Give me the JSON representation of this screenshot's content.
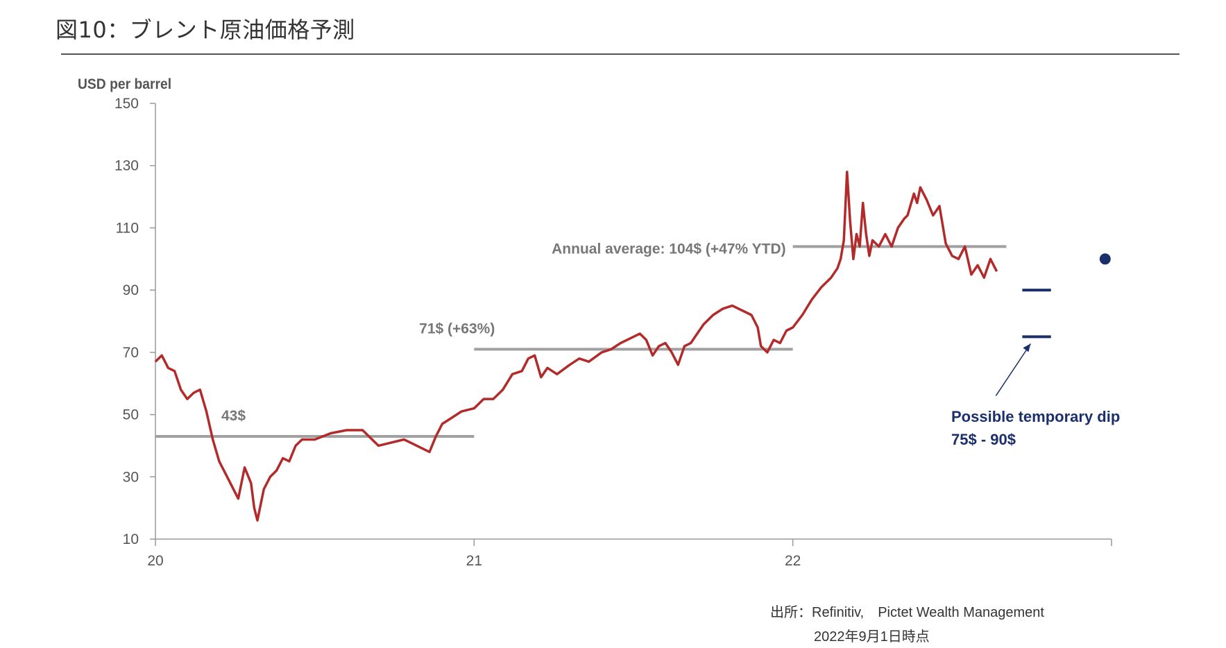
{
  "title": "図10：ブレント原油価格予測",
  "source": "出所：Refinitiv,　Pictet Wealth Management",
  "source_date": "2022年9月1日時点",
  "colors": {
    "price": "#b22a2a",
    "average": "#a0a0a0",
    "forecast": "#1b2f6b",
    "axis": "#999999",
    "text": "#555555"
  },
  "chart_data": {
    "type": "line",
    "ylabel": "USD per barrel",
    "ylim": [
      10,
      150
    ],
    "yticks": [
      10,
      30,
      50,
      70,
      90,
      110,
      130,
      150
    ],
    "xlim": [
      2020,
      2023
    ],
    "xticks": [
      {
        "value": 2020,
        "label": "20"
      },
      {
        "value": 2021,
        "label": "21"
      },
      {
        "value": 2022,
        "label": "22"
      },
      {
        "value": 2023,
        "label": ""
      }
    ],
    "series": [
      {
        "name": "",
        "points": [
          [
            2020.0,
            67
          ],
          [
            2020.02,
            69
          ],
          [
            2020.04,
            65
          ],
          [
            2020.06,
            64
          ],
          [
            2020.08,
            58
          ],
          [
            2020.1,
            55
          ],
          [
            2020.12,
            57
          ],
          [
            2020.14,
            58
          ],
          [
            2020.16,
            51
          ],
          [
            2020.18,
            42
          ],
          [
            2020.2,
            35
          ],
          [
            2020.22,
            31
          ],
          [
            2020.24,
            27
          ],
          [
            2020.26,
            23
          ],
          [
            2020.28,
            33
          ],
          [
            2020.3,
            28
          ],
          [
            2020.31,
            20
          ],
          [
            2020.32,
            16
          ],
          [
            2020.34,
            26
          ],
          [
            2020.36,
            30
          ],
          [
            2020.38,
            32
          ],
          [
            2020.4,
            36
          ],
          [
            2020.42,
            35
          ],
          [
            2020.44,
            40
          ],
          [
            2020.46,
            42
          ],
          [
            2020.5,
            42
          ],
          [
            2020.55,
            44
          ],
          [
            2020.6,
            45
          ],
          [
            2020.65,
            45
          ],
          [
            2020.68,
            42
          ],
          [
            2020.7,
            40
          ],
          [
            2020.74,
            41
          ],
          [
            2020.78,
            42
          ],
          [
            2020.8,
            41
          ],
          [
            2020.82,
            40
          ],
          [
            2020.84,
            39
          ],
          [
            2020.86,
            38
          ],
          [
            2020.88,
            43
          ],
          [
            2020.9,
            47
          ],
          [
            2020.93,
            49
          ],
          [
            2020.96,
            51
          ],
          [
            2021.0,
            52
          ],
          [
            2021.03,
            55
          ],
          [
            2021.06,
            55
          ],
          [
            2021.09,
            58
          ],
          [
            2021.12,
            63
          ],
          [
            2021.15,
            64
          ],
          [
            2021.17,
            68
          ],
          [
            2021.19,
            69
          ],
          [
            2021.21,
            62
          ],
          [
            2021.23,
            65
          ],
          [
            2021.26,
            63
          ],
          [
            2021.3,
            66
          ],
          [
            2021.33,
            68
          ],
          [
            2021.36,
            67
          ],
          [
            2021.4,
            70
          ],
          [
            2021.43,
            71
          ],
          [
            2021.46,
            73
          ],
          [
            2021.5,
            75
          ],
          [
            2021.52,
            76
          ],
          [
            2021.54,
            74
          ],
          [
            2021.56,
            69
          ],
          [
            2021.58,
            72
          ],
          [
            2021.6,
            73
          ],
          [
            2021.62,
            70
          ],
          [
            2021.64,
            66
          ],
          [
            2021.66,
            72
          ],
          [
            2021.68,
            73
          ],
          [
            2021.7,
            76
          ],
          [
            2021.72,
            79
          ],
          [
            2021.75,
            82
          ],
          [
            2021.78,
            84
          ],
          [
            2021.81,
            85
          ],
          [
            2021.83,
            84
          ],
          [
            2021.85,
            83
          ],
          [
            2021.87,
            82
          ],
          [
            2021.89,
            78
          ],
          [
            2021.9,
            72
          ],
          [
            2021.92,
            70
          ],
          [
            2021.94,
            74
          ],
          [
            2021.96,
            73
          ],
          [
            2021.98,
            77
          ],
          [
            2022.0,
            78
          ],
          [
            2022.03,
            82
          ],
          [
            2022.06,
            87
          ],
          [
            2022.09,
            91
          ],
          [
            2022.12,
            94
          ],
          [
            2022.14,
            97
          ],
          [
            2022.15,
            100
          ],
          [
            2022.16,
            106
          ],
          [
            2022.17,
            128
          ],
          [
            2022.18,
            112
          ],
          [
            2022.19,
            100
          ],
          [
            2022.2,
            108
          ],
          [
            2022.21,
            104
          ],
          [
            2022.22,
            118
          ],
          [
            2022.23,
            108
          ],
          [
            2022.24,
            101
          ],
          [
            2022.25,
            106
          ],
          [
            2022.27,
            104
          ],
          [
            2022.29,
            108
          ],
          [
            2022.31,
            104
          ],
          [
            2022.33,
            110
          ],
          [
            2022.35,
            113
          ],
          [
            2022.36,
            114
          ],
          [
            2022.38,
            121
          ],
          [
            2022.39,
            118
          ],
          [
            2022.4,
            123
          ],
          [
            2022.42,
            119
          ],
          [
            2022.44,
            114
          ],
          [
            2022.46,
            117
          ],
          [
            2022.48,
            105
          ],
          [
            2022.5,
            101
          ],
          [
            2022.52,
            100
          ],
          [
            2022.54,
            104
          ],
          [
            2022.56,
            95
          ],
          [
            2022.58,
            98
          ],
          [
            2022.6,
            94
          ],
          [
            2022.62,
            100
          ],
          [
            2022.64,
            96
          ]
        ]
      }
    ],
    "reference_lines": [
      {
        "y": 43,
        "x_start": 2020.0,
        "x_end": 2021.0,
        "label": "43$"
      },
      {
        "y": 71,
        "x_start": 2021.0,
        "x_end": 2022.0,
        "label": "71$ (+63%)"
      },
      {
        "y": 104,
        "x_start": 2022.0,
        "x_end": 2022.67,
        "label": "Annual average: 104$ (+47% YTD)"
      }
    ],
    "forecast": {
      "dip_levels": [
        90,
        75
      ],
      "x_start": 2022.72,
      "x_end": 2022.81,
      "point": {
        "x": 2022.98,
        "y": 100
      },
      "annotation_line1": "Possible temporary dip",
      "annotation_line2": "75$ - 90$"
    }
  }
}
